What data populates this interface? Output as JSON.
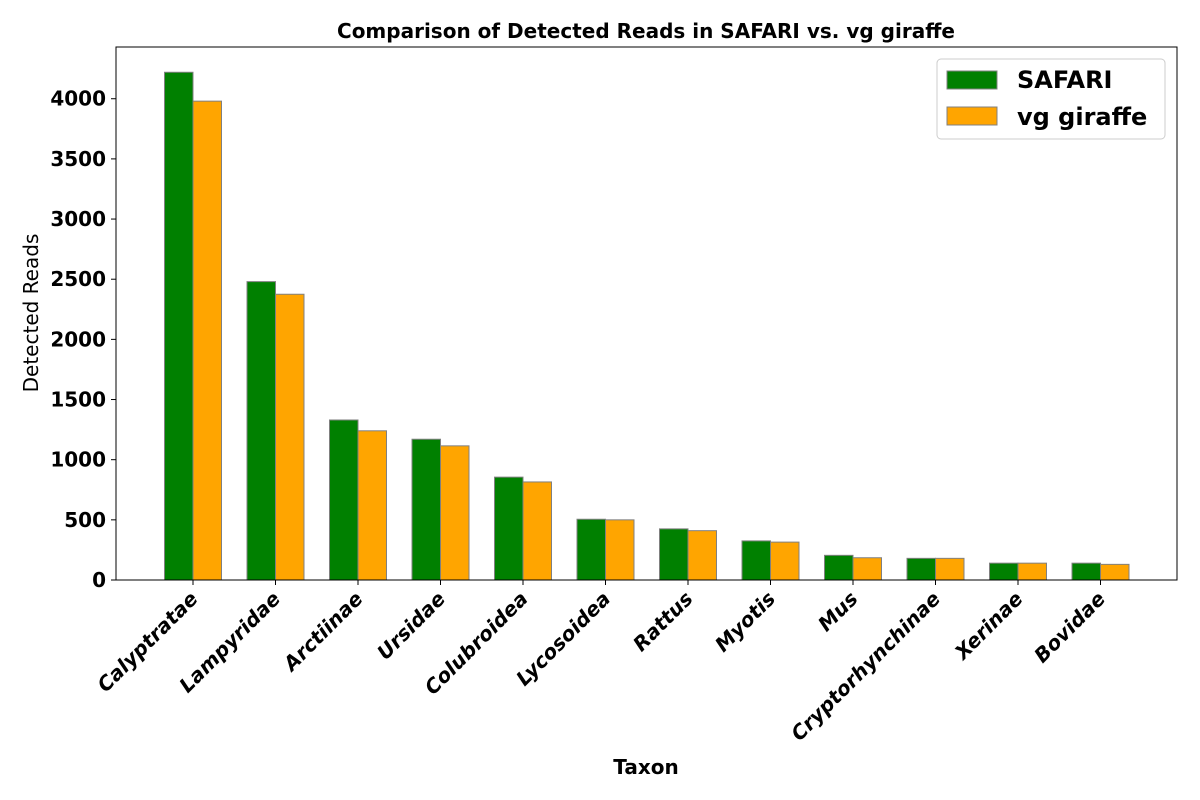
{
  "chart_data": {
    "type": "bar",
    "title": "Comparison of Detected Reads in SAFARI vs. vg giraffe",
    "xlabel": "Taxon",
    "ylabel": "Detected Reads",
    "categories": [
      "Calyptratae",
      "Lampyridae",
      "Arctiinae",
      "Ursidae",
      "Colubroidea",
      "Lycosoidea",
      "Rattus",
      "Myotis",
      "Mus",
      "Cryptorhynchinae",
      "Xerinae",
      "Bovidae"
    ],
    "series": [
      {
        "name": "SAFARI",
        "color": "#008000",
        "values": [
          4220,
          2480,
          1330,
          1170,
          855,
          505,
          425,
          325,
          205,
          180,
          140,
          140
        ]
      },
      {
        "name": "vg giraffe",
        "color": "#FFA500",
        "values": [
          3980,
          2375,
          1240,
          1115,
          815,
          500,
          410,
          315,
          185,
          180,
          140,
          130
        ]
      }
    ],
    "ylim": [
      0,
      4430
    ],
    "yticks": [
      "0",
      "500",
      "1000",
      "1500",
      "2000",
      "2500",
      "3000",
      "3500",
      "4000"
    ],
    "legend_position": "top-right",
    "grid": false
  }
}
